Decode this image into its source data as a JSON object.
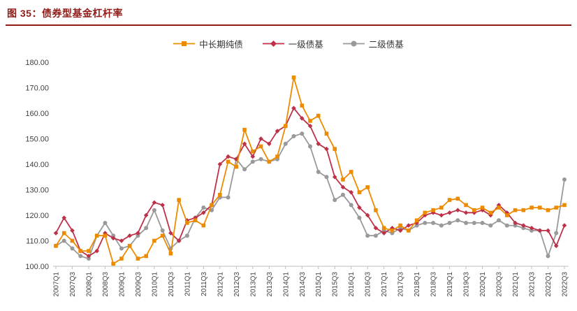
{
  "header": {
    "title": "图 35：债券型基金杠杆率"
  },
  "colors": {
    "accent": "#8E1B17",
    "axis_line": "#BFBFBF",
    "tick_text": "#3F3F3F",
    "series_orange": "#ED8B00",
    "series_crimson": "#BD3148",
    "series_gray": "#999999"
  },
  "chart_data": {
    "type": "line",
    "title": "债券型基金杠杆率",
    "xlabel": "",
    "ylabel": "",
    "ylim": [
      100,
      180
    ],
    "y_ticks": [
      "100.00",
      "110.00",
      "120.00",
      "130.00",
      "140.00",
      "150.00",
      "160.00",
      "170.00",
      "180.00"
    ],
    "x_label_every": 2,
    "grid": false,
    "legend_position": "top",
    "categories": [
      "2007Q1",
      "2007Q2",
      "2007Q3",
      "2007Q4",
      "2008Q1",
      "2008Q2",
      "2008Q3",
      "2008Q4",
      "2009Q1",
      "2009Q2",
      "2009Q3",
      "2009Q4",
      "2010Q1",
      "2010Q2",
      "2010Q3",
      "2010Q4",
      "2011Q1",
      "2011Q2",
      "2011Q3",
      "2011Q4",
      "2012Q1",
      "2012Q2",
      "2012Q3",
      "2012Q4",
      "2013Q1",
      "2013Q2",
      "2013Q3",
      "2013Q4",
      "2014Q1",
      "2014Q2",
      "2014Q3",
      "2014Q4",
      "2015Q1",
      "2015Q2",
      "2015Q3",
      "2015Q4",
      "2016Q1",
      "2016Q2",
      "2016Q3",
      "2016Q4",
      "2017Q1",
      "2017Q2",
      "2017Q3",
      "2017Q4",
      "2018Q1",
      "2018Q2",
      "2018Q3",
      "2018Q4",
      "2019Q1",
      "2019Q2",
      "2019Q3",
      "2019Q4",
      "2020Q1",
      "2020Q2",
      "2020Q3",
      "2020Q4",
      "2021Q1",
      "2021Q2",
      "2021Q3",
      "2021Q4",
      "2022Q1",
      "2022Q2",
      "2022Q3"
    ],
    "series": [
      {
        "name": "中长期纯债",
        "color": "#ED8B00",
        "marker": "square",
        "values": [
          108,
          113,
          110,
          106,
          106,
          112,
          112,
          101,
          103,
          108,
          103,
          104,
          110,
          112,
          105,
          126,
          117,
          118,
          116,
          124,
          128,
          141,
          139,
          153.5,
          145,
          147,
          141,
          143,
          155,
          174,
          163,
          157,
          159,
          152,
          146,
          134,
          137,
          129,
          131,
          122,
          115,
          114,
          116,
          114,
          118,
          121,
          122,
          123,
          126,
          126.5,
          124,
          122,
          123,
          121,
          123,
          120,
          122,
          122,
          123,
          123,
          122,
          123,
          124
        ]
      },
      {
        "name": "一级债基",
        "color": "#BD3148",
        "marker": "diamond",
        "values": [
          113,
          119,
          114,
          106,
          104,
          106,
          113,
          111,
          110,
          112,
          113,
          120,
          125,
          124,
          113,
          110,
          118,
          119,
          121,
          124,
          140,
          143,
          142,
          148,
          143,
          150,
          148,
          153,
          155,
          162,
          158,
          155,
          148,
          146,
          135,
          131,
          129,
          123,
          120,
          115,
          113,
          115,
          114,
          116,
          117,
          120,
          121,
          120,
          121,
          122,
          121,
          121,
          122,
          120,
          124,
          121,
          117,
          116,
          115,
          114,
          114,
          108,
          116
        ]
      },
      {
        "name": "二级债基",
        "color": "#999999",
        "marker": "circle",
        "values": [
          108,
          110,
          107,
          104,
          103,
          112,
          117,
          112,
          107,
          108,
          112,
          115,
          122,
          114,
          107,
          110,
          112,
          119,
          123,
          122,
          127,
          127,
          142,
          138,
          141,
          142,
          141,
          142,
          148,
          151,
          152,
          147,
          137,
          135,
          126,
          128,
          124,
          119,
          112,
          112,
          114,
          113,
          115,
          114,
          116,
          117,
          117,
          116,
          117,
          118,
          117,
          117,
          117,
          116,
          118,
          116,
          116,
          115,
          114,
          114,
          104,
          113,
          134
        ]
      }
    ]
  }
}
